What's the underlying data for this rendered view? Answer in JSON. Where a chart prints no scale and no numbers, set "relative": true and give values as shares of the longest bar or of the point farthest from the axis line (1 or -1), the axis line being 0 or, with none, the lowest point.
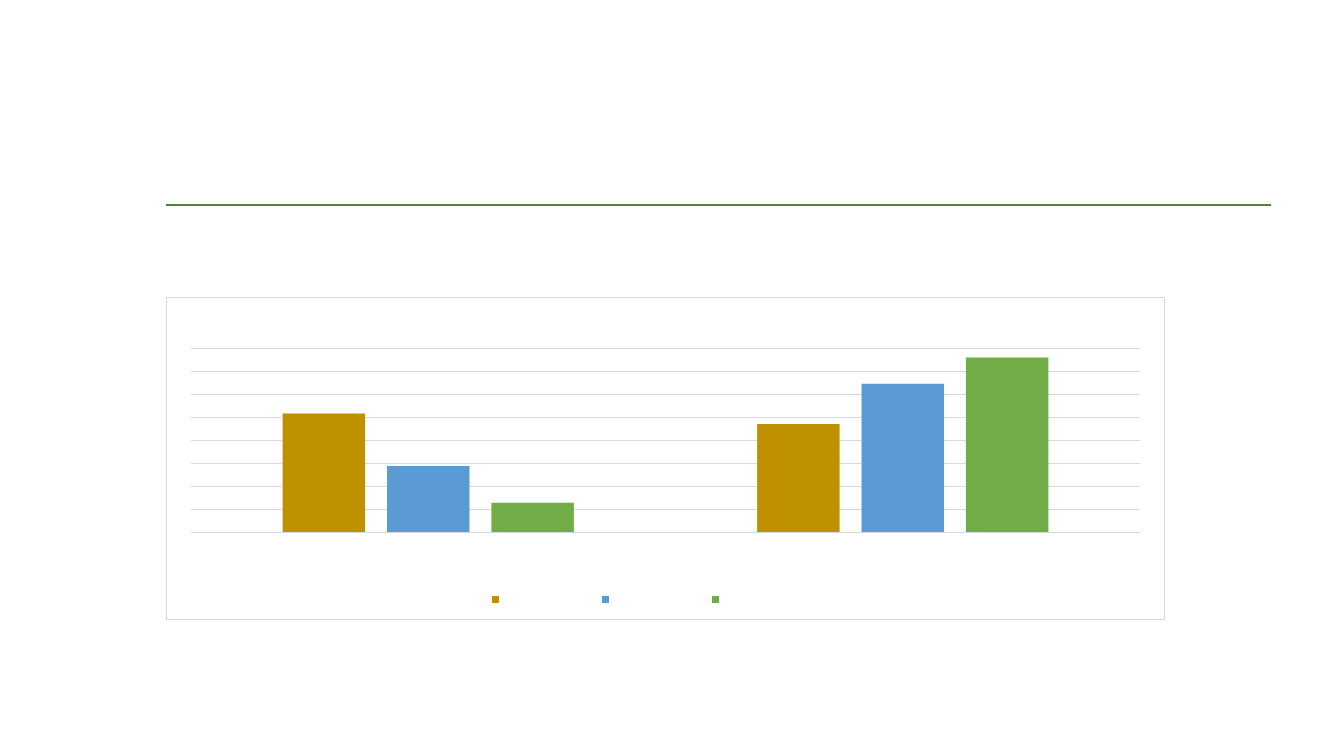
{
  "chart_data": {
    "type": "bar",
    "relative": true,
    "categories": [
      null,
      null
    ],
    "series": [
      {
        "color": "#bf9000",
        "values": [
          0.68,
          0.62
        ]
      },
      {
        "color": "#5b9bd5",
        "values": [
          0.38,
          0.85
        ]
      },
      {
        "color": "#70ad47",
        "values": [
          0.17,
          1
        ]
      }
    ],
    "grid": "y"
  }
}
